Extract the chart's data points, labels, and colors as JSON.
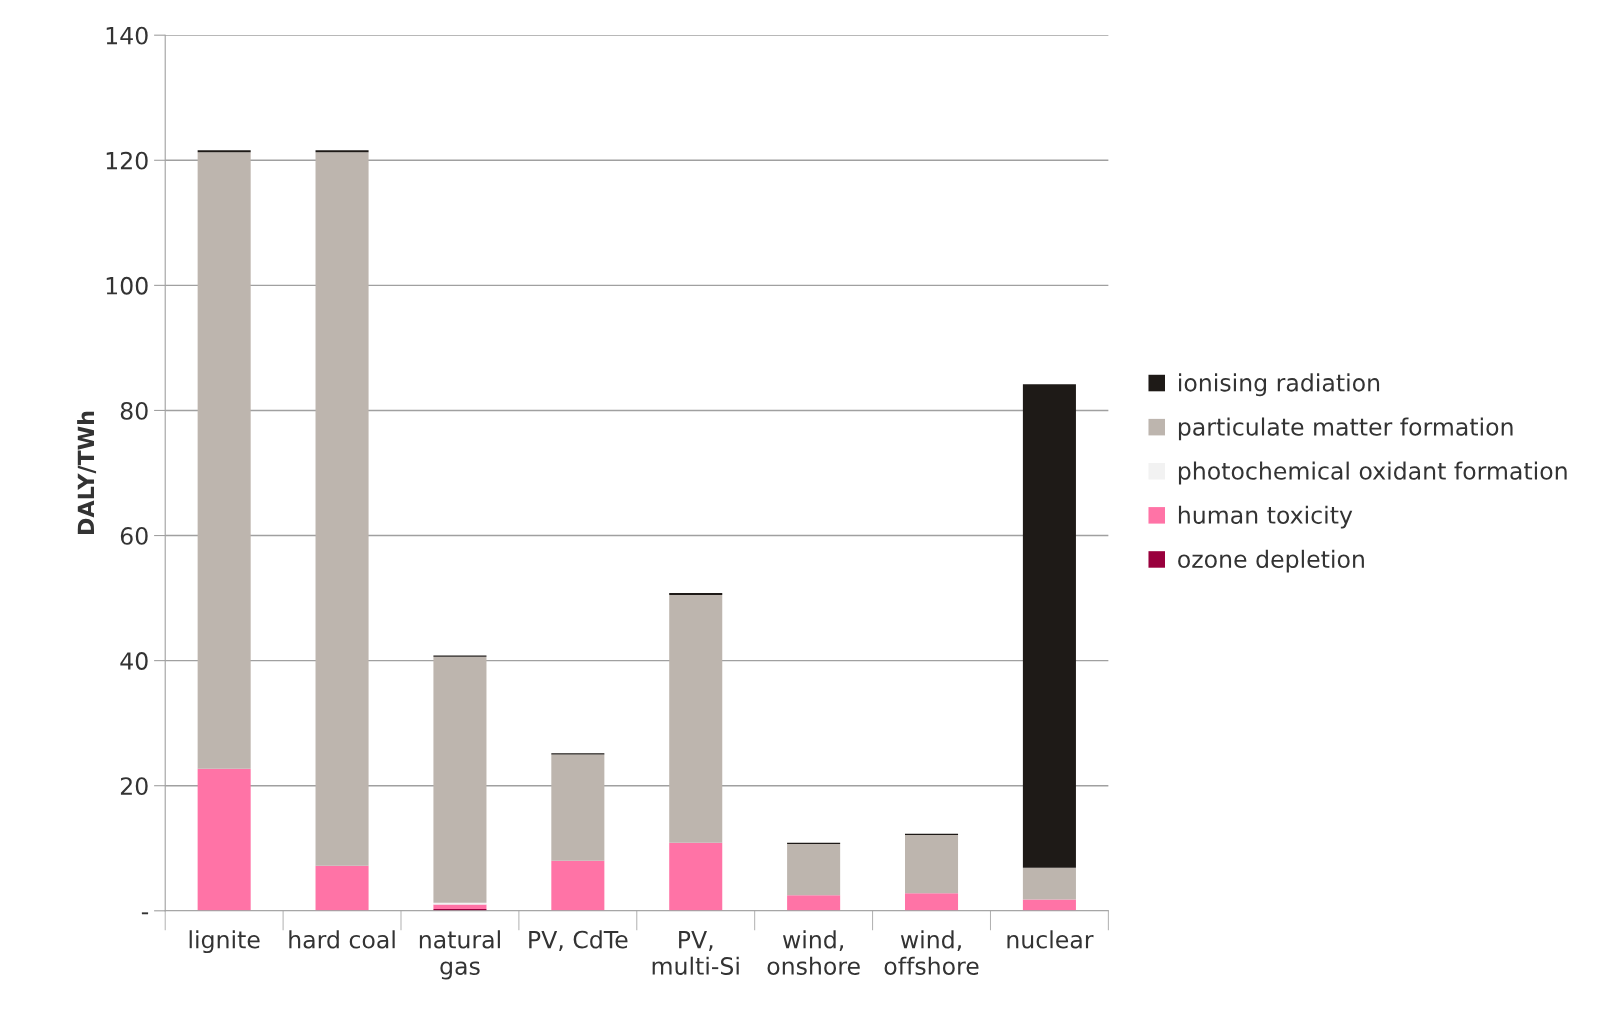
{
  "chart_data": {
    "type": "bar",
    "stacked": true,
    "ylabel": "DALY/TWh",
    "categories": [
      "lignite",
      "hard coal",
      "natural\ngas",
      "PV, CdTe",
      "PV,\nmulti-Si",
      "wind,\nonshore",
      "wind,\noffshore",
      "nuclear"
    ],
    "series": [
      {
        "name": "ozone depletion",
        "color": "#99003d",
        "values": [
          0,
          0,
          0.3,
          0,
          0,
          0,
          0,
          0
        ]
      },
      {
        "name": "human toxicity",
        "color": "#ff73a6",
        "values": [
          22.7,
          7.2,
          0.7,
          8.0,
          10.9,
          2.5,
          2.8,
          1.8
        ]
      },
      {
        "name": "photochemical oxidant formation",
        "color": "#f2f2f2",
        "values": [
          0,
          0,
          0.3,
          0,
          0,
          0,
          0,
          0
        ]
      },
      {
        "name": "particulate matter formation",
        "color": "#bdb5ae",
        "values": [
          98.6,
          114.1,
          39.3,
          17.0,
          39.6,
          8.2,
          9.3,
          5.1
        ]
      },
      {
        "name": "ionising radiation",
        "color": "#1e1a17",
        "values": [
          0.3,
          0.3,
          0.2,
          0.2,
          0.3,
          0.2,
          0.2,
          77.3
        ]
      }
    ],
    "ylim": [
      0,
      140
    ],
    "yticks": [
      {
        "value": 0,
        "label": "-"
      },
      20,
      40,
      60,
      80,
      100,
      120,
      140
    ],
    "grid": "y",
    "legend": "right"
  }
}
